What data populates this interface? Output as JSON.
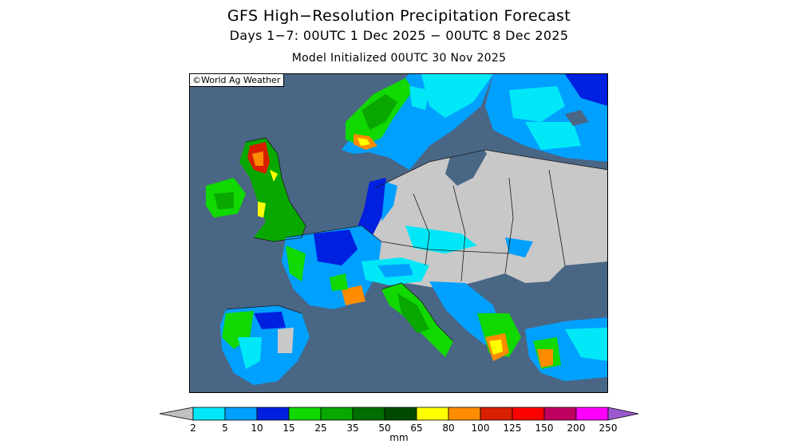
{
  "header": {
    "title": "GFS High−Resolution Precipitation Forecast",
    "subtitle": "Days 1−7: 00UTC 1 Dec 2025 − 00UTC 8 Dec 2025",
    "init": "Model Initialized 00UTC 30 Nov 2025"
  },
  "map": {
    "credit": "©World Ag Weather",
    "colors": {
      "sea": "#4a6685",
      "land_dry": "#c8c8c8",
      "border": "#1a1a1a"
    }
  },
  "colorbar": {
    "unit": "mm",
    "bins": [
      {
        "label": "2",
        "color": "#c0c0c0"
      },
      {
        "label": "5",
        "color": "#00e8f8"
      },
      {
        "label": "10",
        "color": "#00a0ff"
      },
      {
        "label": "15",
        "color": "#0020e0"
      },
      {
        "label": "25",
        "color": "#10d800"
      },
      {
        "label": "35",
        "color": "#08a800"
      },
      {
        "label": "50",
        "color": "#006e00"
      },
      {
        "label": "65",
        "color": "#004a00"
      },
      {
        "label": "80",
        "color": "#ffff00"
      },
      {
        "label": "100",
        "color": "#ff8c00"
      },
      {
        "label": "125",
        "color": "#d82000"
      },
      {
        "label": "150",
        "color": "#ff0000"
      },
      {
        "label": "200",
        "color": "#c00060"
      },
      {
        "label": "250",
        "color": "#ff00ff"
      },
      {
        "label": "",
        "color": "#9b59d0"
      }
    ]
  }
}
